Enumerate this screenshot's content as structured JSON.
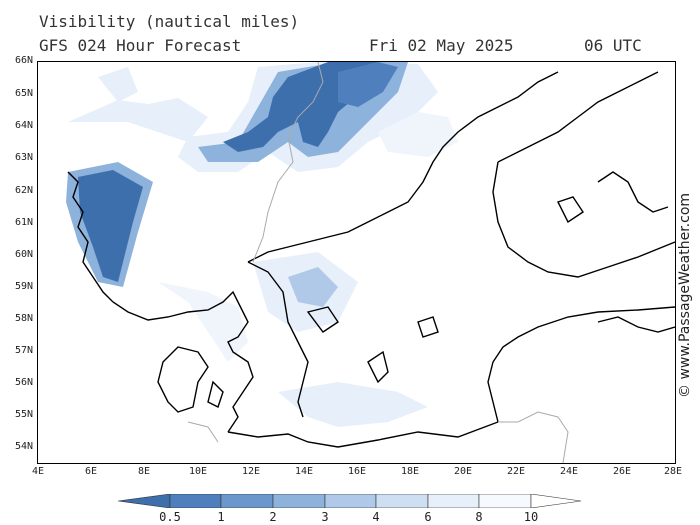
{
  "header": {
    "title": "Visibility (nautical miles)",
    "forecast": "GFS 024 Hour Forecast",
    "date": "Fri 02 May 2025",
    "time": "06 UTC"
  },
  "map": {
    "lat_labels": [
      "66N",
      "65N",
      "64N",
      "63N",
      "62N",
      "61N",
      "60N",
      "59N",
      "58N",
      "57N",
      "56N",
      "55N",
      "54N"
    ],
    "lon_labels": [
      "4E",
      "6E",
      "8E",
      "10E",
      "12E",
      "14E",
      "16E",
      "18E",
      "20E",
      "22E",
      "24E",
      "26E",
      "28E"
    ],
    "extent": {
      "lon_min": 4,
      "lon_max": 28,
      "lat_min": 53.7,
      "lat_max": 66
    }
  },
  "colorbar": {
    "labels": [
      "0.5",
      "1",
      "2",
      "3",
      "4",
      "6",
      "8",
      "10"
    ],
    "colors": [
      "#3e6fad",
      "#4f80bd",
      "#6b98cc",
      "#8db2dc",
      "#b0c9e8",
      "#cedff2",
      "#e6effa",
      "#f6f9fe",
      "#ffffff"
    ]
  },
  "watermark": "© www.PassageWeather.com"
}
